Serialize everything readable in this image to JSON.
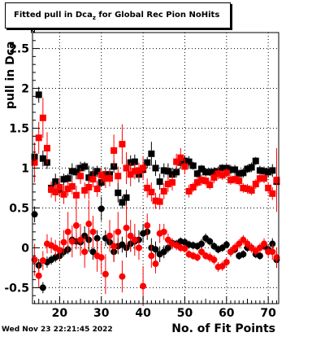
{
  "title": {
    "main": "Fitted pull in Dca",
    "subscript": "z",
    "suffix": " for Global Rec Pion NoHits"
  },
  "timestamp": "Wed Nov 23 22:21:45 2022",
  "chart_data": {
    "type": "scatter",
    "title": "Fitted pull in Dca_z for Global Rec Pion NoHits",
    "xlabel": "No. of Fit Points",
    "ylabel": "pull in Dca",
    "ylabel_sub": "z",
    "xlim": [
      13.5,
      72.5
    ],
    "ylim": [
      -0.7,
      2.7
    ],
    "x_ticks": [
      "20",
      "30",
      "40",
      "50",
      "60",
      "70"
    ],
    "y_ticks": [
      "-0.5",
      "0",
      "0.5",
      "1",
      "1.5",
      "2",
      "2.5"
    ],
    "grid": true,
    "series": [
      {
        "color": "#000000",
        "marker": "square",
        "x": [
          14,
          15,
          16,
          17,
          18,
          19,
          20,
          21,
          22,
          23,
          24,
          25,
          26,
          27,
          28,
          29,
          30,
          31,
          32,
          33,
          34,
          35,
          36,
          37,
          38,
          39,
          40,
          41,
          42,
          43,
          44,
          45,
          46,
          47,
          48,
          49,
          50,
          51,
          52,
          53,
          54,
          55,
          56,
          57,
          58,
          59,
          60,
          61,
          62,
          63,
          64,
          65,
          66,
          67,
          68,
          69,
          70,
          71,
          72
        ],
        "y": [
          1.14,
          1.92,
          1.12,
          1.07,
          0.75,
          0.83,
          0.73,
          0.86,
          0.87,
          0.96,
          0.95,
          1.0,
          1.02,
          0.88,
          0.92,
          0.96,
          0.82,
          0.92,
          0.92,
          1.02,
          0.69,
          0.57,
          0.63,
          1.07,
          1.08,
          0.92,
          0.98,
          1.07,
          1.18,
          1.0,
          0.83,
          0.97,
          0.96,
          0.92,
          0.95,
          1.07,
          1.09,
          1.08,
          1.03,
          0.93,
          0.99,
          0.95,
          0.95,
          0.95,
          0.96,
          1.0,
          1.0,
          0.98,
          0.98,
          0.93,
          0.94,
          0.99,
          1.01,
          1.09,
          0.97,
          0.96,
          0.95,
          0.97,
          0.83
        ],
        "yerr": [
          0.12,
          0.1,
          0.1,
          0.08,
          0.06,
          0.1,
          0.09,
          0.07,
          0.06,
          0.1,
          0.09,
          0.08,
          0.06,
          0.15,
          0.1,
          0.07,
          0.06,
          0.09,
          0.08,
          0.08,
          0.12,
          0.08,
          0.1,
          0.09,
          0.09,
          0.1,
          0.1,
          0.07,
          0.15,
          0.1,
          0.1,
          0.09,
          0.1,
          0.08,
          0.07,
          0.08,
          0.07,
          0.07,
          0.05,
          0.05,
          0.05,
          0.05,
          0.05,
          0.06,
          0.06,
          0.05,
          0.05,
          0.06,
          0.06,
          0.05,
          0.06,
          0.05,
          0.06,
          0.05,
          0.06,
          0.06,
          0.07,
          0.08,
          0.1
        ]
      },
      {
        "color": "#ff0000",
        "marker": "square",
        "x": [
          14,
          15,
          16,
          17,
          18,
          19,
          20,
          21,
          22,
          23,
          24,
          25,
          26,
          27,
          28,
          29,
          30,
          31,
          32,
          33,
          34,
          35,
          36,
          37,
          38,
          39,
          40,
          41,
          42,
          43,
          44,
          45,
          46,
          47,
          48,
          49,
          50,
          51,
          52,
          53,
          54,
          55,
          56,
          57,
          58,
          59,
          60,
          61,
          62,
          63,
          64,
          65,
          66,
          67,
          68,
          69,
          70,
          71,
          72
        ],
        "y": [
          1.07,
          1.38,
          1.63,
          1.25,
          0.73,
          0.7,
          0.76,
          0.67,
          0.74,
          0.77,
          0.66,
          0.9,
          0.72,
          0.76,
          0.86,
          0.74,
          0.91,
          0.87,
          0.87,
          1.22,
          0.9,
          1.3,
          1.0,
          0.92,
          0.96,
          0.97,
          1.0,
          0.75,
          0.7,
          0.59,
          0.58,
          0.71,
          0.8,
          0.82,
          1.08,
          1.13,
          1.02,
          0.71,
          0.76,
          0.82,
          0.85,
          0.84,
          0.79,
          0.88,
          0.93,
          0.91,
          0.94,
          0.85,
          0.86,
          0.84,
          0.75,
          0.74,
          0.72,
          0.8,
          0.87,
          0.87,
          0.75,
          0.68,
          0.85
        ],
        "yerr": [
          0.25,
          0.2,
          0.25,
          0.2,
          0.1,
          0.12,
          0.12,
          0.12,
          0.09,
          0.1,
          0.12,
          0.1,
          0.1,
          0.15,
          0.1,
          0.1,
          0.1,
          0.12,
          0.1,
          0.2,
          0.12,
          0.25,
          0.2,
          0.15,
          0.1,
          0.1,
          0.15,
          0.12,
          0.12,
          0.1,
          0.1,
          0.1,
          0.1,
          0.1,
          0.1,
          0.12,
          0.1,
          0.08,
          0.06,
          0.06,
          0.07,
          0.06,
          0.06,
          0.07,
          0.07,
          0.06,
          0.06,
          0.06,
          0.06,
          0.06,
          0.06,
          0.06,
          0.06,
          0.06,
          0.06,
          0.06,
          0.07,
          0.08,
          0.4
        ]
      },
      {
        "color": "#000000",
        "marker": "circle",
        "x": [
          14,
          15,
          16,
          17,
          18,
          19,
          20,
          21,
          22,
          23,
          24,
          25,
          26,
          27,
          28,
          29,
          30,
          31,
          32,
          33,
          34,
          35,
          36,
          37,
          38,
          39,
          40,
          41,
          42,
          43,
          44,
          45,
          46,
          47,
          48,
          49,
          50,
          51,
          52,
          53,
          54,
          55,
          56,
          57,
          58,
          59,
          60,
          61,
          62,
          63,
          64,
          65,
          66,
          67,
          68,
          69,
          70,
          71,
          72
        ],
        "y": [
          0.42,
          -0.22,
          -0.5,
          -0.18,
          -0.15,
          -0.12,
          -0.1,
          -0.05,
          -0.02,
          0.1,
          0.08,
          0.07,
          0.15,
          0.1,
          -0.05,
          0.12,
          0.49,
          0.12,
          0.07,
          -0.05,
          0.02,
          0.04,
          0.0,
          0.05,
          0.08,
          0.1,
          0.18,
          0.2,
          0.0,
          -0.02,
          -0.08,
          -0.05,
          0.0,
          0.06,
          0.05,
          0.08,
          0.07,
          0.04,
          0.03,
          0.02,
          0.05,
          0.12,
          0.08,
          0.02,
          -0.02,
          0.0,
          0.04,
          -0.05,
          -0.02,
          -0.1,
          -0.08,
          0.0,
          0.0,
          -0.08,
          -0.1,
          0.02,
          -0.02,
          0.05,
          -0.15
        ],
        "yerr": [
          0.1,
          0.08,
          0.07,
          0.07,
          0.06,
          0.06,
          0.06,
          0.06,
          0.06,
          0.07,
          0.08,
          0.1,
          0.12,
          0.15,
          0.1,
          0.1,
          0.15,
          0.1,
          0.1,
          0.12,
          0.1,
          0.1,
          0.12,
          0.1,
          0.1,
          0.12,
          0.12,
          0.1,
          0.12,
          0.1,
          0.1,
          0.08,
          0.06,
          0.06,
          0.05,
          0.05,
          0.05,
          0.05,
          0.05,
          0.05,
          0.06,
          0.06,
          0.05,
          0.05,
          0.05,
          0.05,
          0.05,
          0.06,
          0.05,
          0.05,
          0.05,
          0.05,
          0.05,
          0.05,
          0.05,
          0.05,
          0.06,
          0.07,
          0.1
        ]
      },
      {
        "color": "#ff0000",
        "marker": "circle",
        "x": [
          14,
          15,
          16,
          17,
          18,
          19,
          20,
          21,
          22,
          23,
          24,
          25,
          26,
          27,
          28,
          29,
          30,
          31,
          32,
          33,
          34,
          35,
          36,
          37,
          38,
          39,
          40,
          41,
          42,
          43,
          44,
          45,
          46,
          47,
          48,
          49,
          50,
          51,
          52,
          53,
          54,
          55,
          56,
          57,
          58,
          59,
          60,
          61,
          62,
          63,
          64,
          65,
          66,
          67,
          68,
          69,
          70,
          71,
          72
        ],
        "y": [
          -0.15,
          -0.35,
          -0.16,
          0.05,
          0.03,
          0.0,
          -0.03,
          0.07,
          0.2,
          0.08,
          0.28,
          0.1,
          -0.05,
          0.3,
          0.2,
          -0.1,
          -0.12,
          -0.33,
          0.15,
          0.02,
          0.2,
          -0.36,
          0.25,
          0.15,
          0.1,
          0.0,
          -0.48,
          0.28,
          -0.1,
          -0.2,
          0.18,
          0.2,
          0.1,
          0.05,
          0.03,
          0.0,
          -0.01,
          -0.08,
          -0.1,
          -0.12,
          -0.05,
          -0.1,
          -0.12,
          -0.15,
          -0.24,
          -0.23,
          -0.18,
          -0.05,
          0.0,
          0.05,
          0.1,
          0.05,
          0.0,
          -0.04,
          0.0,
          0.05,
          -0.05,
          -0.05,
          -0.12
        ],
        "yerr": [
          0.2,
          0.15,
          0.12,
          0.12,
          0.1,
          0.1,
          0.12,
          0.15,
          0.25,
          0.2,
          0.3,
          0.2,
          0.2,
          0.3,
          0.2,
          0.2,
          0.2,
          0.25,
          0.2,
          0.2,
          0.25,
          0.2,
          0.3,
          0.2,
          0.2,
          0.15,
          0.25,
          0.15,
          0.15,
          0.12,
          0.12,
          0.1,
          0.08,
          0.07,
          0.06,
          0.05,
          0.05,
          0.05,
          0.05,
          0.05,
          0.05,
          0.05,
          0.06,
          0.06,
          0.06,
          0.06,
          0.06,
          0.06,
          0.06,
          0.06,
          0.06,
          0.06,
          0.06,
          0.06,
          0.06,
          0.07,
          0.08,
          0.1,
          0.12
        ]
      }
    ]
  }
}
